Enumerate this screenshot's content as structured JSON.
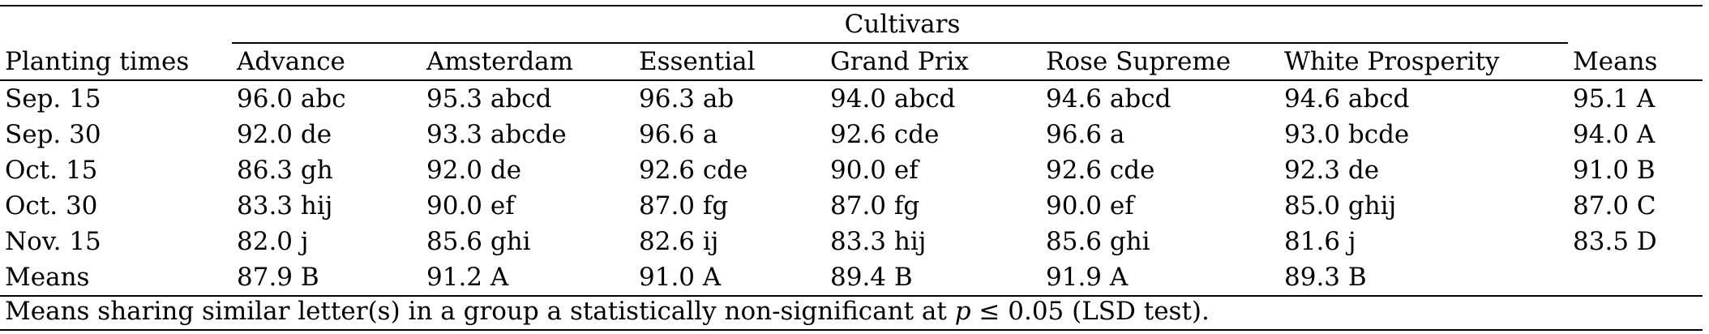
{
  "table": {
    "group_header": "Cultivars",
    "row_header": "Planting times",
    "columns": [
      "Advance",
      "Amsterdam",
      "Essential",
      "Grand Prix",
      "Rose Supreme",
      "White Prosperity"
    ],
    "means_header": "Means",
    "rows": [
      {
        "label": "Sep. 15",
        "cells": [
          "96.0 abc",
          "95.3 abcd",
          "96.3 ab",
          "94.0 abcd",
          "94.6 abcd",
          "94.6 abcd"
        ],
        "mean": "95.1 A"
      },
      {
        "label": "Sep. 30",
        "cells": [
          "92.0 de",
          "93.3 abcde",
          "96.6 a",
          "92.6 cde",
          "96.6 a",
          "93.0 bcde"
        ],
        "mean": "94.0 A"
      },
      {
        "label": "Oct. 15",
        "cells": [
          "86.3 gh",
          "92.0 de",
          "92.6 cde",
          "90.0 ef",
          "92.6 cde",
          "92.3 de"
        ],
        "mean": "91.0 B"
      },
      {
        "label": "Oct. 30",
        "cells": [
          "83.3 hij",
          "90.0 ef",
          "87.0 fg",
          "87.0 fg",
          "90.0 ef",
          "85.0 ghij"
        ],
        "mean": "87.0 C"
      },
      {
        "label": "Nov. 15",
        "cells": [
          "82.0 j",
          "85.6 ghi",
          "82.6 ij",
          "83.3 hij",
          "85.6 ghi",
          "81.6 j"
        ],
        "mean": "83.5 D"
      },
      {
        "label": "Means",
        "cells": [
          "87.9 B",
          "91.2 A",
          "91.0 A",
          "89.4 B",
          "91.9 A",
          "89.3 B"
        ],
        "mean": ""
      }
    ]
  },
  "footnote": {
    "before": "Means sharing similar letter(s) in a group a statistically non-significant at ",
    "pvar": "p",
    "after": " ≤ 0.05 (LSD test)."
  }
}
